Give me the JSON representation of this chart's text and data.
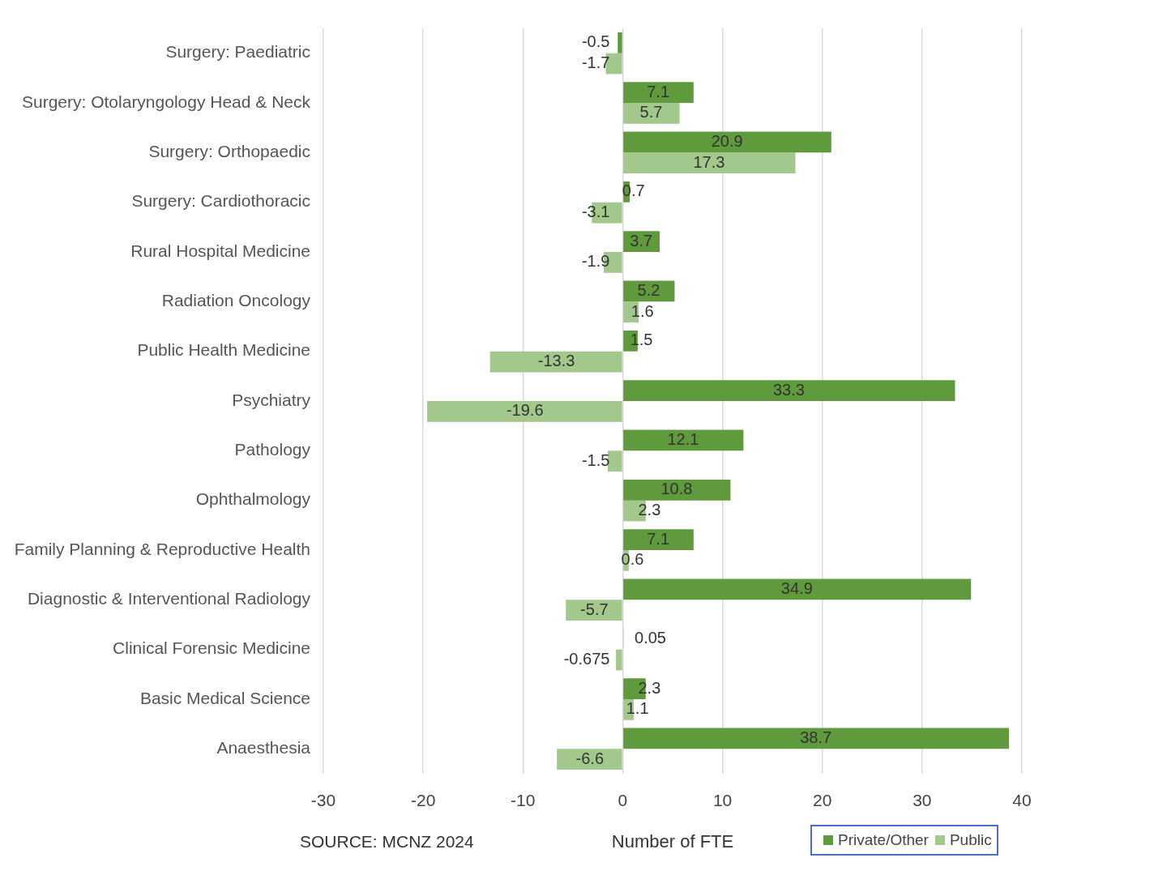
{
  "chart_data": {
    "type": "bar",
    "orientation": "horizontal",
    "xlabel": "Number of FTE",
    "categories": [
      "Surgery: Paediatric",
      "Surgery: Otolaryngology Head & Neck",
      "Surgery: Orthopaedic",
      "Surgery: Cardiothoracic",
      "Rural Hospital Medicine",
      "Radiation Oncology",
      "Public Health Medicine",
      "Psychiatry",
      "Pathology",
      "Ophthalmology",
      "Family Planning & Reproductive Health",
      "Diagnostic & Interventional Radiology",
      "Clinical Forensic Medicine",
      "Basic Medical Science",
      "Anaesthesia"
    ],
    "series": [
      {
        "name": "Private/Other",
        "color": "#5f9a3c",
        "values": [
          -0.5,
          7.1,
          20.9,
          0.7,
          3.7,
          5.2,
          1.5,
          33.3,
          12.1,
          10.8,
          7.1,
          34.9,
          0.05,
          2.3,
          38.7
        ]
      },
      {
        "name": "Public",
        "color": "#a3c88c",
        "values": [
          -1.7,
          5.7,
          17.3,
          -3.1,
          -1.9,
          1.6,
          -13.3,
          -19.6,
          -1.5,
          2.3,
          0.6,
          -5.7,
          -0.675,
          1.1,
          -6.6
        ]
      }
    ],
    "xlim": [
      -30,
      40
    ],
    "xticks": [
      -30,
      -20,
      -10,
      0,
      10,
      20,
      30,
      40
    ],
    "grid": "x",
    "legend": "bottom right",
    "data_labels": true,
    "annotations": [
      "SOURCE: MCNZ 2024"
    ]
  }
}
